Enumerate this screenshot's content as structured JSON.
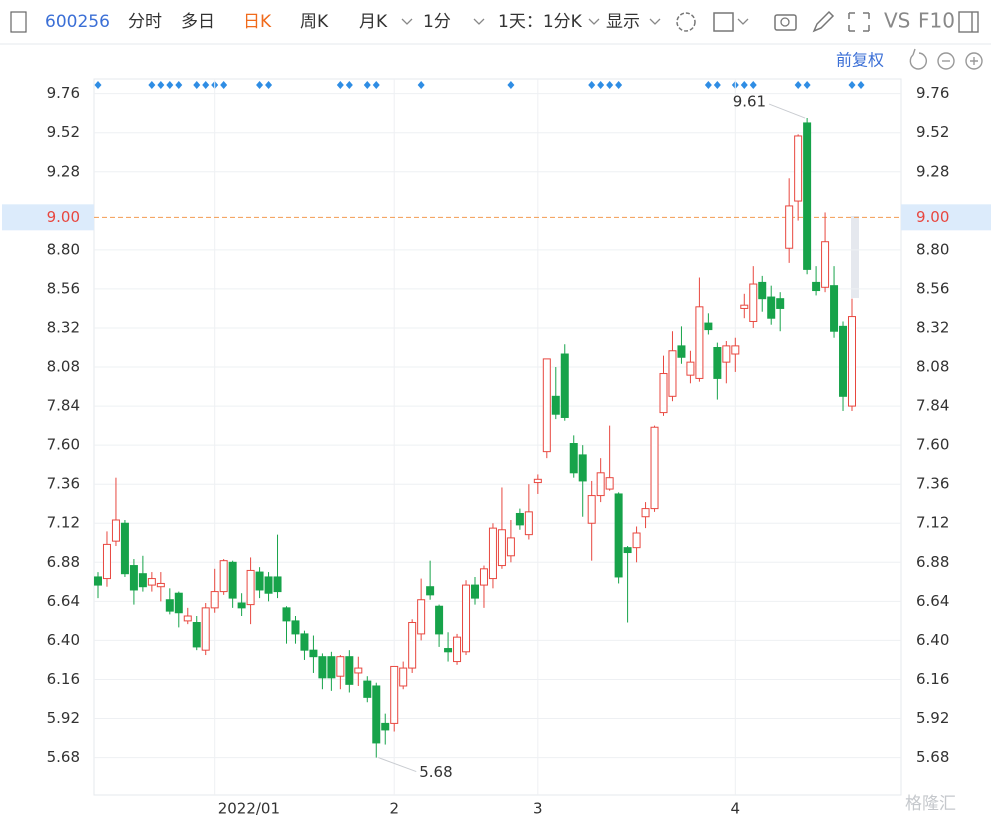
{
  "toolbar": {
    "symbol": "600256",
    "tabs": [
      "分时",
      "多日",
      "日K",
      "周K",
      "月K",
      "1分"
    ],
    "range": "1天：1分K",
    "display": "显示",
    "vs": "VS",
    "f10": "F10",
    "adjust": "前复权"
  },
  "watermark": "格隆汇",
  "chart_data": {
    "type": "candlestick",
    "categories": [
      null,
      null,
      null,
      null,
      null,
      null,
      null,
      null,
      null,
      null,
      null,
      null,
      null,
      "2022/01",
      null,
      null,
      null,
      null,
      null,
      null,
      null,
      null,
      null,
      null,
      null,
      null,
      null,
      null,
      null,
      null,
      null,
      null,
      null,
      "2",
      null,
      null,
      null,
      null,
      null,
      null,
      null,
      null,
      null,
      null,
      null,
      null,
      null,
      null,
      null,
      "3",
      null,
      null,
      null,
      null,
      null,
      null,
      null,
      null,
      null,
      null,
      null,
      null,
      null,
      null,
      null,
      null,
      null,
      null,
      null,
      null,
      null,
      "4",
      null,
      null,
      null,
      null,
      null,
      null,
      null,
      null,
      null,
      null,
      null,
      null,
      null
    ],
    "open": [
      6.79,
      6.78,
      7.01,
      7.12,
      6.86,
      6.81,
      6.74,
      6.73,
      6.65,
      6.69,
      6.52,
      6.51,
      6.34,
      6.6,
      6.7,
      6.88,
      6.63,
      6.62,
      6.82,
      6.79,
      6.79,
      6.6,
      6.52,
      6.44,
      6.34,
      6.3,
      6.3,
      6.18,
      6.3,
      6.2,
      6.15,
      6.12,
      5.89,
      5.89,
      6.12,
      6.23,
      6.44,
      6.73,
      6.61,
      6.35,
      6.27,
      6.33,
      6.74,
      6.74,
      6.78,
      6.86,
      6.92,
      7.18,
      7.05,
      7.37,
      7.56,
      7.9,
      8.16,
      7.61,
      7.54,
      7.12,
      7.29,
      7.33,
      7.3,
      6.97,
      6.97,
      7.16,
      7.21,
      7.8,
      7.9,
      8.21,
      8.03,
      8.01,
      8.35,
      8.2,
      8.11,
      8.16,
      8.44,
      8.36,
      8.6,
      8.51,
      8.5,
      8.81,
      9.1,
      9.58,
      8.6,
      8.57,
      8.58,
      8.33,
      7.84
    ],
    "high": [
      6.82,
      7.07,
      7.4,
      7.14,
      6.9,
      6.92,
      6.82,
      6.82,
      6.72,
      6.7,
      6.6,
      6.55,
      6.63,
      6.84,
      6.9,
      6.89,
      6.69,
      6.91,
      6.85,
      6.82,
      7.05,
      6.61,
      6.55,
      6.46,
      6.43,
      6.32,
      6.33,
      6.31,
      6.34,
      6.3,
      6.18,
      6.14,
      5.95,
      6.24,
      6.27,
      6.53,
      6.78,
      6.89,
      6.62,
      6.45,
      6.44,
      6.77,
      6.79,
      6.86,
      7.12,
      7.34,
      7.14,
      7.21,
      7.36,
      7.42,
      8.13,
      8.08,
      8.22,
      7.66,
      7.6,
      7.38,
      7.52,
      7.72,
      7.31,
      6.98,
      7.1,
      7.25,
      7.72,
      8.15,
      8.3,
      8.33,
      8.18,
      8.63,
      8.41,
      8.23,
      8.24,
      8.26,
      8.53,
      8.7,
      8.64,
      8.58,
      8.54,
      9.24,
      9.51,
      9.61,
      8.7,
      9.03,
      8.7,
      8.36,
      8.5
    ],
    "low": [
      6.66,
      6.73,
      6.98,
      6.79,
      6.62,
      6.7,
      6.7,
      6.64,
      6.56,
      6.48,
      6.5,
      6.34,
      6.31,
      6.57,
      6.68,
      6.6,
      6.55,
      6.5,
      6.66,
      6.64,
      6.66,
      6.38,
      6.38,
      6.28,
      6.2,
      6.1,
      6.09,
      6.1,
      6.08,
      6.12,
      6.02,
      5.68,
      5.76,
      5.84,
      6.1,
      6.2,
      6.4,
      6.65,
      6.36,
      6.27,
      6.25,
      6.31,
      6.62,
      6.6,
      6.72,
      6.84,
      6.88,
      7.08,
      7.02,
      7.3,
      7.52,
      7.76,
      7.75,
      7.4,
      7.16,
      6.89,
      7.25,
      7.32,
      6.75,
      6.51,
      6.88,
      7.09,
      7.19,
      7.78,
      7.87,
      8.1,
      7.98,
      7.99,
      8.28,
      7.88,
      7.98,
      8.05,
      8.38,
      8.32,
      8.42,
      8.34,
      8.3,
      8.72,
      8.98,
      8.65,
      8.52,
      8.54,
      8.26,
      7.81,
      7.81
    ],
    "close": [
      6.74,
      6.99,
      7.14,
      6.81,
      6.71,
      6.73,
      6.78,
      6.75,
      6.58,
      6.57,
      6.55,
      6.36,
      6.6,
      6.7,
      6.89,
      6.66,
      6.6,
      6.83,
      6.71,
      6.69,
      6.7,
      6.52,
      6.44,
      6.34,
      6.3,
      6.17,
      6.17,
      6.3,
      6.13,
      6.23,
      6.05,
      5.77,
      5.85,
      6.24,
      6.23,
      6.51,
      6.65,
      6.68,
      6.44,
      6.33,
      6.42,
      6.74,
      6.66,
      6.84,
      7.09,
      7.08,
      7.03,
      7.11,
      7.19,
      7.39,
      8.13,
      7.79,
      7.77,
      7.43,
      7.38,
      7.29,
      7.43,
      7.4,
      6.79,
      6.94,
      7.06,
      7.21,
      7.71,
      8.04,
      8.18,
      8.14,
      8.11,
      8.45,
      8.31,
      8.01,
      8.21,
      8.21,
      8.46,
      8.59,
      8.5,
      8.38,
      8.44,
      9.07,
      9.5,
      8.68,
      8.55,
      8.85,
      8.3,
      7.9,
      8.39
    ],
    "up_color": "#e8473f",
    "down_color": "#17a34a",
    "ylim": [
      5.45,
      9.85
    ],
    "yticks": [
      5.68,
      5.92,
      6.16,
      {
        "value": 6.4,
        "label": "6.40"
      },
      6.64,
      6.88,
      7.12,
      7.36,
      {
        "value": 7.6,
        "label": "7.60"
      },
      7.84,
      8.08,
      8.32,
      8.56,
      {
        "value": 8.8,
        "label": "8.80"
      },
      9.28,
      9.52,
      9.76
    ],
    "price_line": {
      "value": 9,
      "label": "9.00"
    },
    "grid": true
  }
}
